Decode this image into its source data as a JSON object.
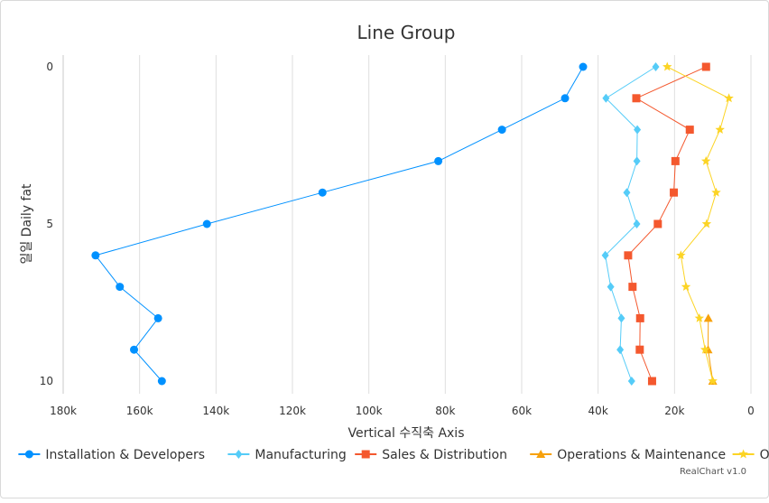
{
  "chart_data": {
    "type": "line",
    "orientation": "inverted",
    "title": "Line Group",
    "xlabel": "Vertical 수직축 Axis",
    "ylabel": "일일 Daily fat",
    "x_axis": {
      "reversed": true,
      "min": 0,
      "max": 180000,
      "ticks": [
        "180k",
        "160k",
        "140k",
        "120k",
        "100k",
        "80k",
        "60k",
        "40k",
        "20k",
        "0"
      ]
    },
    "y_axis": {
      "reversed": true,
      "min": 0,
      "max": 10,
      "ticks": [
        "0",
        "5",
        "10"
      ]
    },
    "categories": [
      0,
      1,
      2,
      3,
      4,
      5,
      6,
      7,
      8,
      9,
      10
    ],
    "grid": true,
    "legend": "bottom",
    "series": [
      {
        "name": "Installation & Developers",
        "color": "#0091ff",
        "marker": "circle",
        "values": [
          43934,
          48656,
          65165,
          81827,
          112143,
          142383,
          171533,
          165174,
          155157,
          161454,
          154175
        ]
      },
      {
        "name": "Manufacturing",
        "color": "#55ccf8",
        "marker": "diamond",
        "values": [
          24916,
          37941,
          29742,
          29851,
          32490,
          29882,
          38121,
          36704,
          33908,
          34227,
          31229
        ]
      },
      {
        "name": "Sales & Distribution",
        "color": "#f4582e",
        "marker": "square",
        "values": [
          11744,
          30000,
          16005,
          19771,
          20185,
          24377,
          32147,
          30988,
          29000,
          29100,
          25876
        ]
      },
      {
        "name": "Operations & Maintenance",
        "color": "#f7a10c",
        "marker": "triangle",
        "values": [
          null,
          null,
          null,
          null,
          null,
          null,
          null,
          null,
          11164,
          11218,
          10000
        ]
      },
      {
        "name": "Other",
        "color": "#fcd425",
        "marker": "star",
        "values": [
          21908,
          5759,
          8100,
          11773,
          9100,
          11600,
          18343,
          17000,
          13500,
          12000,
          10000
        ]
      }
    ]
  },
  "credits": "RealChart v1.0"
}
